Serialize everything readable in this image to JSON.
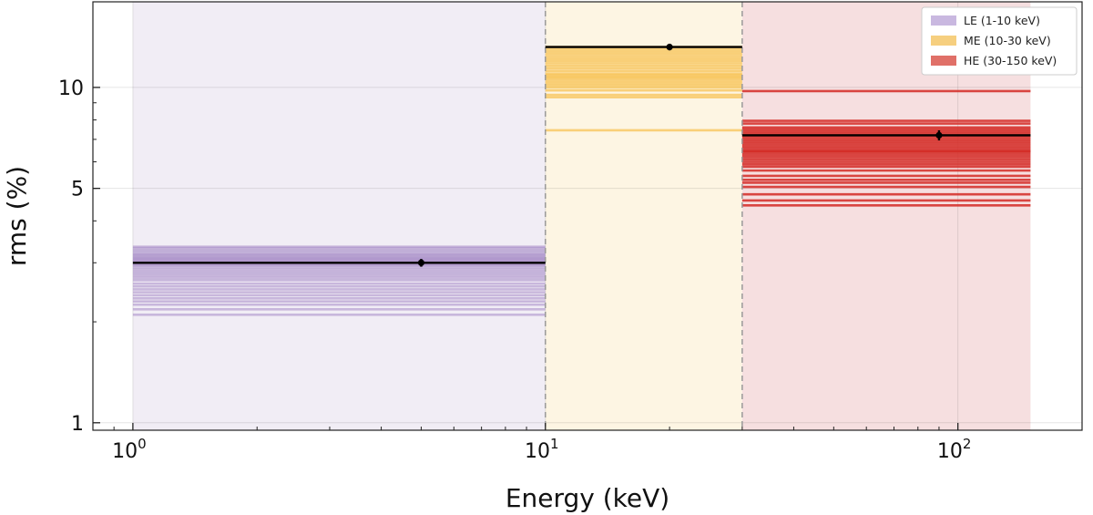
{
  "chart_data": {
    "type": "line",
    "xscale": "log",
    "yscale": "log",
    "xlim": [
      0.8,
      200
    ],
    "ylim": [
      0.95,
      18
    ],
    "xlabel": "Energy (keV)",
    "ylabel": "rms (%)",
    "x_major_ticks": [
      {
        "value": 1,
        "base": "10",
        "exp": "0"
      },
      {
        "value": 10,
        "base": "10",
        "exp": "1"
      },
      {
        "value": 100,
        "base": "10",
        "exp": "2"
      }
    ],
    "y_ticks": [
      {
        "value": 1,
        "label": "1"
      },
      {
        "value": 5,
        "label": "5"
      },
      {
        "value": 10,
        "label": "10"
      }
    ],
    "grid": true,
    "legend_position": "top-right",
    "bands": [
      {
        "name": "LE (1-10 keV)",
        "range": [
          1,
          10
        ],
        "fill_color": "#f1edf5",
        "line_color": "#a58bc7",
        "legend_color": "#c9b8e0",
        "line_opacity": 0.55,
        "observation_rms": [
          3.35,
          3.32,
          3.28,
          3.24,
          3.2,
          3.17,
          3.15,
          3.12,
          3.1,
          3.08,
          3.06,
          3.04,
          3.02,
          3.0,
          2.98,
          2.96,
          2.94,
          2.9,
          2.86,
          2.82,
          2.78,
          2.74,
          2.7,
          2.66,
          2.6,
          2.55,
          2.5,
          2.45,
          2.4,
          2.35,
          2.3,
          2.25,
          2.18,
          2.1
        ],
        "mean": {
          "x": 5,
          "y": 3.0,
          "xerr": [
            1,
            10
          ],
          "yerr": 0.08
        }
      },
      {
        "name": "ME (10-30 keV)",
        "range": [
          10,
          30
        ],
        "fill_color": "#fdf5e3",
        "line_color": "#f7c65c",
        "legend_color": "#f6cf7f",
        "line_opacity": 0.8,
        "observation_rms": [
          13.2,
          13.0,
          12.8,
          12.6,
          12.4,
          12.2,
          12.0,
          11.8,
          11.6,
          11.4,
          11.2,
          11.0,
          10.9,
          10.8,
          10.7,
          10.6,
          10.45,
          10.3,
          10.15,
          10.0,
          9.8,
          9.5,
          9.35,
          7.45
        ],
        "mean": {
          "x": 20,
          "y": 13.2,
          "xerr": [
            10,
            30
          ],
          "yerr": 0.3
        }
      },
      {
        "name": "HE (30-150 keV)",
        "range": [
          30,
          150
        ],
        "fill_color": "#f6dfe0",
        "line_color": "#d32a25",
        "legend_color": "#e07068",
        "line_opacity": 0.85,
        "observation_rms": [
          9.75,
          7.95,
          7.8,
          7.6,
          7.5,
          7.4,
          7.3,
          7.2,
          7.1,
          7.0,
          6.9,
          6.8,
          6.7,
          6.6,
          6.5,
          6.45,
          6.4,
          6.3,
          6.2,
          6.1,
          6.0,
          5.9,
          5.8,
          5.65,
          5.45,
          5.3,
          5.2,
          5.05,
          4.8,
          4.6,
          4.45
        ],
        "mean": {
          "x": 90,
          "y": 7.2,
          "xerr": [
            30,
            150
          ],
          "yerr": 0.25
        }
      }
    ]
  }
}
